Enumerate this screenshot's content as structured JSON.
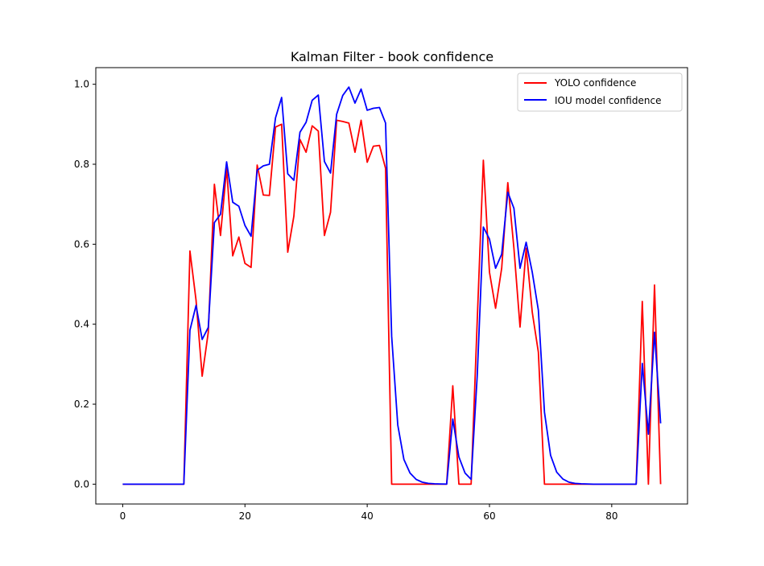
{
  "chart_data": {
    "type": "line",
    "title": "Kalman Filter - book confidence",
    "xlabel": "",
    "ylabel": "",
    "xlim": [
      -4.4,
      92.4
    ],
    "ylim": [
      -0.0496,
      1.0416
    ],
    "xticks": [
      0,
      20,
      40,
      60,
      80
    ],
    "yticks": [
      0.0,
      0.2,
      0.4,
      0.6,
      0.8,
      1.0
    ],
    "ytick_labels": [
      "0.0",
      "0.2",
      "0.4",
      "0.6",
      "0.8",
      "1.0"
    ],
    "grid": false,
    "legend_position": "upper right",
    "series": [
      {
        "name": "YOLO confidence",
        "color": "#ff0000",
        "x": [
          0,
          1,
          2,
          3,
          4,
          5,
          6,
          7,
          8,
          9,
          10,
          11,
          12,
          13,
          14,
          15,
          16,
          17,
          18,
          19,
          20,
          21,
          22,
          23,
          24,
          25,
          26,
          27,
          28,
          29,
          30,
          31,
          32,
          33,
          34,
          35,
          36,
          37,
          38,
          39,
          40,
          41,
          42,
          43,
          44,
          45,
          46,
          47,
          48,
          49,
          50,
          51,
          52,
          53,
          54,
          55,
          56,
          57,
          58,
          59,
          60,
          61,
          62,
          63,
          64,
          65,
          66,
          67,
          68,
          69,
          70,
          71,
          72,
          73,
          74,
          75,
          76,
          77,
          78,
          79,
          80,
          81,
          82,
          83,
          84,
          85,
          86,
          87,
          88
        ],
        "values": [
          0,
          0,
          0,
          0,
          0,
          0,
          0,
          0,
          0,
          0,
          0,
          0.583,
          0.46,
          0.27,
          0.38,
          0.75,
          0.622,
          0.79,
          0.571,
          0.618,
          0.552,
          0.542,
          0.798,
          0.723,
          0.722,
          0.893,
          0.9,
          0.58,
          0.67,
          0.862,
          0.83,
          0.896,
          0.883,
          0.622,
          0.68,
          0.91,
          0.907,
          0.903,
          0.83,
          0.91,
          0.805,
          0.845,
          0.847,
          0.79,
          0,
          0,
          0,
          0,
          0,
          0,
          0,
          0,
          0,
          0,
          0.246,
          0,
          0,
          0,
          0.41,
          0.81,
          0.53,
          0.44,
          0.54,
          0.754,
          0.59,
          0.393,
          0.59,
          0.43,
          0.33,
          0,
          0,
          0,
          0,
          0,
          0,
          0,
          0,
          0,
          0,
          0,
          0,
          0,
          0,
          0,
          0,
          0.457,
          0,
          0.498,
          0
        ]
      },
      {
        "name": "IOU model confidence",
        "color": "#0000ff",
        "x": [
          0,
          1,
          2,
          3,
          4,
          5,
          6,
          7,
          8,
          9,
          10,
          11,
          12,
          13,
          14,
          15,
          16,
          17,
          18,
          19,
          20,
          21,
          22,
          23,
          24,
          25,
          26,
          27,
          28,
          29,
          30,
          31,
          32,
          33,
          34,
          35,
          36,
          37,
          38,
          39,
          40,
          41,
          42,
          43,
          44,
          45,
          46,
          47,
          48,
          49,
          50,
          51,
          52,
          53,
          54,
          55,
          56,
          57,
          58,
          59,
          60,
          61,
          62,
          63,
          64,
          65,
          66,
          67,
          68,
          69,
          70,
          71,
          72,
          73,
          74,
          75,
          76,
          77,
          78,
          79,
          80,
          81,
          82,
          83,
          84,
          85,
          86,
          87,
          88
        ],
        "values": [
          0,
          0,
          0,
          0,
          0,
          0,
          0,
          0,
          0,
          0,
          0,
          0.385,
          0.447,
          0.362,
          0.392,
          0.654,
          0.675,
          0.806,
          0.705,
          0.695,
          0.647,
          0.62,
          0.785,
          0.796,
          0.8,
          0.916,
          0.967,
          0.776,
          0.76,
          0.88,
          0.905,
          0.96,
          0.973,
          0.807,
          0.778,
          0.925,
          0.972,
          0.993,
          0.953,
          0.988,
          0.935,
          0.94,
          0.942,
          0.903,
          0.37,
          0.148,
          0.062,
          0.028,
          0.012,
          0.005,
          0.002,
          0.001,
          0.0005,
          0.0002,
          0.163,
          0.068,
          0.028,
          0.012,
          0.272,
          0.643,
          0.613,
          0.54,
          0.575,
          0.73,
          0.69,
          0.54,
          0.605,
          0.53,
          0.435,
          0.18,
          0.072,
          0.03,
          0.013,
          0.005,
          0.002,
          0.001,
          0.0005,
          0,
          0,
          0,
          0,
          0,
          0,
          0,
          0,
          0.302,
          0.125,
          0.38,
          0.152
        ]
      }
    ]
  }
}
